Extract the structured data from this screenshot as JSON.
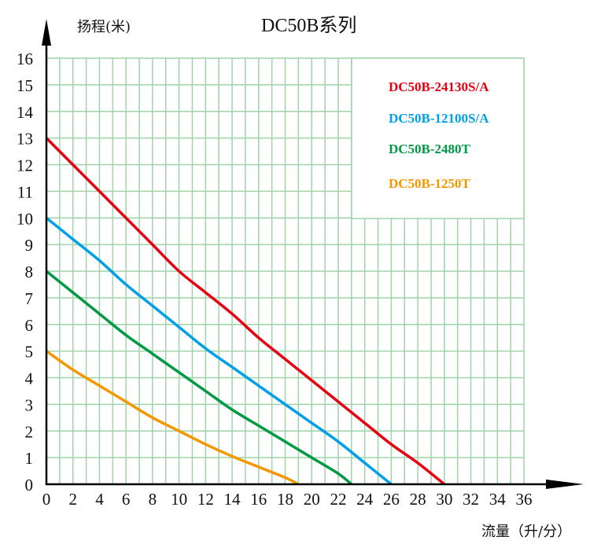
{
  "chart_data": {
    "type": "line",
    "title": "DC50B系列",
    "xlabel": "流量（升/分）",
    "ylabel": "扬程(米)",
    "xlim": [
      0,
      36
    ],
    "ylim": [
      0,
      16
    ],
    "x_ticks": [
      0,
      2,
      4,
      6,
      8,
      10,
      12,
      14,
      16,
      18,
      20,
      22,
      24,
      26,
      28,
      30,
      32,
      34,
      36
    ],
    "y_ticks": [
      0,
      1,
      2,
      3,
      4,
      5,
      6,
      7,
      8,
      9,
      10,
      11,
      12,
      13,
      14,
      15,
      16
    ],
    "grid": true,
    "grid_color": "#9fd4a8",
    "legend_position": "upper right (inside)",
    "series": [
      {
        "name": "DC50B-24130S/A",
        "color": "#e60012",
        "x": [
          0,
          2,
          4,
          6,
          8,
          10,
          12,
          14,
          16,
          18,
          20,
          22,
          24,
          26,
          28,
          30
        ],
        "values": [
          13,
          12,
          11,
          10,
          9,
          8,
          7.2,
          6.4,
          5.5,
          4.7,
          3.9,
          3.1,
          2.3,
          1.5,
          0.8,
          0
        ]
      },
      {
        "name": "DC50B-12100S/A",
        "color": "#00a0e9",
        "x": [
          0,
          2,
          4,
          6,
          8,
          10,
          12,
          14,
          16,
          18,
          20,
          22,
          24,
          26
        ],
        "values": [
          10,
          9.2,
          8.4,
          7.5,
          6.7,
          5.9,
          5.1,
          4.4,
          3.7,
          3.0,
          2.3,
          1.6,
          0.8,
          0
        ]
      },
      {
        "name": "DC50B-2480T",
        "color": "#009944",
        "x": [
          0,
          2,
          4,
          6,
          8,
          10,
          12,
          14,
          16,
          18,
          20,
          22,
          23
        ],
        "values": [
          8,
          7.2,
          6.4,
          5.6,
          4.9,
          4.2,
          3.5,
          2.8,
          2.2,
          1.6,
          1.0,
          0.4,
          0
        ]
      },
      {
        "name": "DC50B-1250T",
        "color": "#f39800",
        "x": [
          0,
          2,
          4,
          6,
          8,
          10,
          12,
          14,
          16,
          18,
          19
        ],
        "values": [
          5,
          4.3,
          3.7,
          3.1,
          2.5,
          2.0,
          1.5,
          1.05,
          0.65,
          0.25,
          0
        ]
      }
    ]
  },
  "labels": {
    "title": "DC50B系列",
    "ylabel": "扬程(米)",
    "xlabel": "流量（升/分）"
  }
}
